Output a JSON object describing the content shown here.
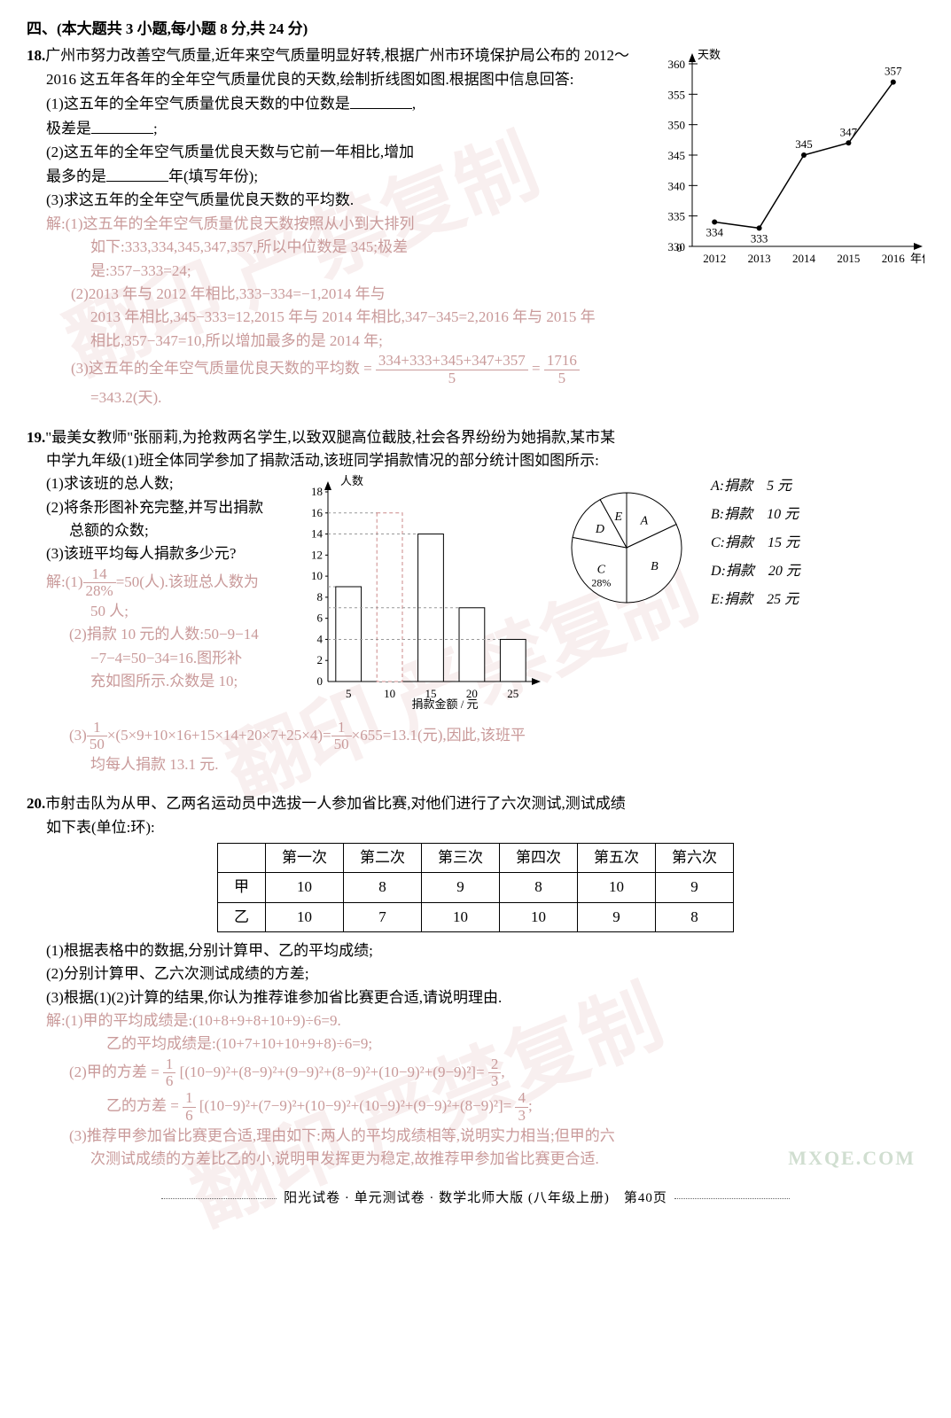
{
  "section_head": "四、(本大题共 3 小题,每小题 8 分,共 24 分)",
  "q18": {
    "num": "18.",
    "intro_l1": "广州市努力改善空气质量,近年来空气质量明显好转,根据广州市环境保护局公布的 2012〜",
    "intro_l2": "2016 这五年各年的全年空气质量优良的天数,绘制折线图如图.根据图中信息回答:",
    "p1a": "(1)这五年的全年空气质量优良天数的中位数是",
    "p1b": ",",
    "p1c": "极差是",
    "p1d": ";",
    "p2a": "(2)这五年的全年空气质量优良天数与它前一年相比,增加",
    "p2b": "最多的是",
    "p2c": "年(填写年份);",
    "p3": "(3)求这五年的全年空气质量优良天数的平均数.",
    "sol1a": "解:(1)这五年的全年空气质量优良天数按照从小到大排列",
    "sol1b": "如下:333,334,345,347,357,所以中位数是 345;极差",
    "sol1c": "是:357−333=24;",
    "sol2a": "(2)2013 年与 2012 年相比,333−334=−1,2014 年与",
    "sol2b": "2013 年相比,345−333=12,2015 年与 2014 年相比,347−345=2,2016 年与 2015 年",
    "sol2c": "相比,357−347=10,所以增加最多的是 2014 年;",
    "sol3a": "(3)这五年的全年空气质量优良天数的平均数 =",
    "sol3_num1": "334+333+345+347+357",
    "sol3_den1": "5",
    "sol3_eq": "=",
    "sol3_num2": "1716",
    "sol3_den2": "5",
    "sol3b": "=343.2(天).",
    "chart": {
      "type": "line",
      "ylabel": "天数",
      "xlabel": "年份",
      "xticks": [
        "2012",
        "2013",
        "2014",
        "2015",
        "2016"
      ],
      "yticks": [
        330,
        335,
        340,
        345,
        350,
        355,
        360
      ],
      "points": [
        {
          "x": "2012",
          "y": 334,
          "label": "334"
        },
        {
          "x": "2013",
          "y": 333,
          "label": "333"
        },
        {
          "x": "2014",
          "y": 345,
          "label": "345"
        },
        {
          "x": "2015",
          "y": 347,
          "label": "347"
        },
        {
          "x": "2016",
          "y": 357,
          "label": "357"
        }
      ],
      "line_color": "#000000",
      "axis_color": "#000000",
      "label_fontsize": 13,
      "grid_color": "#aaaaaa"
    }
  },
  "q19": {
    "num": "19.",
    "intro_l1": "\"最美女教师\"张丽莉,为抢救两名学生,以致双腿高位截肢,社会各界纷纷为她捐款,某市某",
    "intro_l2": "中学九年级(1)班全体同学参加了捐款活动,该班同学捐款情况的部分统计图如图所示:",
    "p1": "(1)求该班的总人数;",
    "p2a": "(2)将条形图补充完整,并写出捐款",
    "p2b": "总额的众数;",
    "p3": "(3)该班平均每人捐款多少元?",
    "sol1_pre": "解:(1)",
    "sol1_num": "14",
    "sol1_den": "28%",
    "sol1_post": "=50(人).该班总人数为",
    "sol1_end": "50 人;",
    "sol2a": "(2)捐款 10 元的人数:50−9−14",
    "sol2b": "−7−4=50−34=16.图形补",
    "sol2c": "充如图所示.众数是 10;",
    "sol3_pre": "(3)",
    "sol3_num": "1",
    "sol3_den": "50",
    "sol3_mid": "×(5×9+10×16+15×14+20×7+25×4)=",
    "sol3_num2": "1",
    "sol3_den2": "50",
    "sol3_post": "×655=13.1(元),因此,该班平",
    "sol3_end": "均每人捐款 13.1 元.",
    "bar_chart": {
      "type": "bar",
      "ylabel": "人数",
      "xlabel": "捐款金额 / 元",
      "xticks": [
        "5",
        "10",
        "15",
        "20",
        "25"
      ],
      "yticks": [
        0,
        2,
        4,
        6,
        8,
        10,
        12,
        14,
        16,
        18
      ],
      "values": [
        9,
        16,
        14,
        7,
        4
      ],
      "dashed_index": 1,
      "bar_fill": "#ffffff",
      "bar_stroke": "#000000",
      "dashed_stroke": "#cc8888",
      "axis_color": "#000000",
      "label_fontsize": 13
    },
    "pie_chart": {
      "type": "pie",
      "slices": [
        {
          "label": "A",
          "pct": 18
        },
        {
          "label": "B",
          "pct": 32
        },
        {
          "label": "C",
          "pct": 28,
          "show_pct": "28%"
        },
        {
          "label": "D",
          "pct": 14
        },
        {
          "label": "E",
          "pct": 8
        }
      ],
      "stroke": "#000000",
      "fill": "#ffffff",
      "label_fontsize": 14
    },
    "legend": [
      {
        "k": "A",
        "v": "捐款　5 元"
      },
      {
        "k": "B",
        "v": "捐款　10 元"
      },
      {
        "k": "C",
        "v": "捐款　15 元"
      },
      {
        "k": "D",
        "v": "捐款　20 元"
      },
      {
        "k": "E",
        "v": "捐款　25 元"
      }
    ]
  },
  "q20": {
    "num": "20.",
    "intro_l1": "市射击队为从甲、乙两名运动员中选拔一人参加省比赛,对他们进行了六次测试,测试成绩",
    "intro_l2": "如下表(单位:环):",
    "table": {
      "cols": [
        "",
        "第一次",
        "第二次",
        "第三次",
        "第四次",
        "第五次",
        "第六次"
      ],
      "rows": [
        [
          "甲",
          "10",
          "8",
          "9",
          "8",
          "10",
          "9"
        ],
        [
          "乙",
          "10",
          "7",
          "10",
          "10",
          "9",
          "8"
        ]
      ]
    },
    "p1": "(1)根据表格中的数据,分别计算甲、乙的平均成绩;",
    "p2": "(2)分别计算甲、乙六次测试成绩的方差;",
    "p3": "(3)根据(1)(2)计算的结果,你认为推荐谁参加省比赛更合适,请说明理由.",
    "sol1a": "解:(1)甲的平均成绩是:(10+8+9+8+10+9)÷6=9.",
    "sol1b": "乙的平均成绩是:(10+7+10+10+9+8)÷6=9;",
    "sol2a_pre": "(2)甲的方差 =",
    "sol2_num": "1",
    "sol2_den": "6",
    "sol2a_mid": "[(10−9)²+(8−9)²+(9−9)²+(8−9)²+(10−9)²+(9−9)²]=",
    "sol2a_rnum": "2",
    "sol2a_rden": "3",
    "sol2a_end": ",",
    "sol2b_pre": "乙的方差 =",
    "sol2b_mid": "[(10−9)²+(7−9)²+(10−9)²+(10−9)²+(9−9)²+(8−9)²]=",
    "sol2b_rnum": "4",
    "sol2b_rden": "3",
    "sol2b_end": ";",
    "sol3a": "(3)推荐甲参加省比赛更合适,理由如下:两人的平均成绩相等,说明实力相当;但甲的六",
    "sol3b": "次测试成绩的方差比乙的小,说明甲发挥更为稳定,故推荐甲参加省比赛更合适."
  },
  "footer": "阳光试卷 · 单元测试卷 · 数学北师大版 (八年级上册)　第40页",
  "watermark": "翻印 严禁复制",
  "logo": "MXQE.COM"
}
